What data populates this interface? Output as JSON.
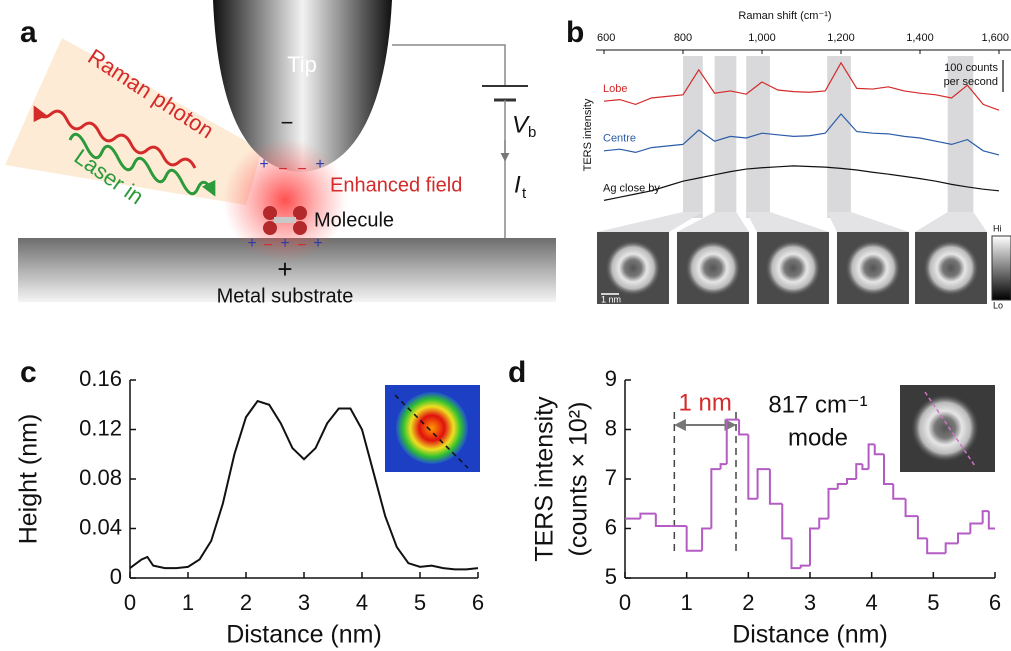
{
  "panel_labels": [
    "a",
    "b",
    "c",
    "d"
  ],
  "schematic": {
    "tip": "Tip",
    "tip_sign": "−",
    "tip_charges": [
      "+",
      "−",
      "−",
      "+"
    ],
    "raman": "Raman photon",
    "laser": "Laser in",
    "enhanced": "Enhanced field",
    "molecule": "Molecule",
    "substrate_charges": [
      "+",
      "−",
      "+",
      "−",
      "+"
    ],
    "substrate_sign": "+",
    "substrate": "Metal substrate",
    "bias": "V",
    "bias_sub": "b",
    "current": "I",
    "current_sub": "t"
  },
  "chart_data": [
    {
      "type": "line",
      "xlabel": "Raman shift (cm⁻¹)",
      "ylabel": "TERS intensity",
      "x": [
        600,
        640,
        680,
        720,
        760,
        800,
        840,
        880,
        920,
        960,
        1000,
        1040,
        1080,
        1120,
        1160,
        1200,
        1240,
        1280,
        1320,
        1360,
        1400,
        1440,
        1480,
        1520,
        1560,
        1600
      ],
      "xlim": [
        600,
        1600
      ],
      "xticks": [
        600,
        800,
        {
          "value": 1000,
          "label": "1,000"
        },
        {
          "value": 1200,
          "label": "1,200"
        },
        {
          "value": 1400,
          "label": "1,400"
        },
        {
          "value": 1600,
          "label": "1,600"
        }
      ],
      "ylim": [
        0,
        500
      ],
      "series": [
        {
          "name": "Lobe",
          "color": "#d42a2a",
          "values": [
            340,
            345,
            330,
            350,
            355,
            360,
            438,
            365,
            372,
            362,
            400,
            375,
            370,
            368,
            372,
            460,
            380,
            378,
            385,
            372,
            365,
            360,
            350,
            390,
            330,
            312
          ]
        },
        {
          "name": "Centre",
          "color": "#2b5ca8",
          "values": [
            185,
            190,
            180,
            195,
            200,
            205,
            250,
            215,
            230,
            225,
            240,
            235,
            230,
            232,
            240,
            300,
            245,
            240,
            238,
            230,
            225,
            215,
            205,
            220,
            185,
            172
          ]
        },
        {
          "name": "Ag close by",
          "color": "#111111",
          "values": [
            30,
            40,
            50,
            60,
            75,
            90,
            100,
            110,
            120,
            128,
            132,
            135,
            138,
            136,
            134,
            130,
            125,
            118,
            112,
            105,
            98,
            90,
            80,
            72,
            65,
            60
          ]
        }
      ],
      "bands": [
        [
          800,
          850
        ],
        [
          880,
          935
        ],
        [
          960,
          1020
        ],
        [
          1165,
          1225
        ],
        [
          1470,
          1535
        ]
      ],
      "scale_bar": {
        "value": 100,
        "label_lines": [
          "100 counts",
          "per second"
        ]
      },
      "image_scale": "1 nm",
      "colorbar": [
        "Hi",
        "Lo"
      ]
    },
    {
      "type": "line",
      "xlabel": "Distance (nm)",
      "ylabel": "Height (nm)",
      "x": [
        0,
        0.2,
        0.3,
        0.4,
        0.6,
        0.8,
        1.0,
        1.2,
        1.4,
        1.6,
        1.8,
        2.0,
        2.2,
        2.4,
        2.6,
        2.8,
        3.0,
        3.2,
        3.4,
        3.6,
        3.8,
        4.0,
        4.2,
        4.4,
        4.6,
        4.8,
        5.0,
        5.2,
        5.4,
        5.6,
        5.8,
        6.0
      ],
      "values": [
        0.008,
        0.015,
        0.017,
        0.01,
        0.008,
        0.008,
        0.009,
        0.015,
        0.03,
        0.06,
        0.1,
        0.13,
        0.143,
        0.14,
        0.125,
        0.105,
        0.096,
        0.105,
        0.125,
        0.137,
        0.137,
        0.12,
        0.085,
        0.05,
        0.025,
        0.012,
        0.009,
        0.01,
        0.008,
        0.007,
        0.007,
        0.008
      ],
      "color": "#111111",
      "xlim": [
        0,
        6
      ],
      "xticks": [
        0,
        1,
        2,
        3,
        4,
        5,
        6
      ],
      "ylim": [
        0,
        0.16
      ],
      "yticks": [
        0,
        0.04,
        0.08,
        0.12,
        0.16
      ]
    },
    {
      "type": "step",
      "xlabel": "Distance (nm)",
      "ylabel": [
        "TERS intensity",
        "(counts × 10²)"
      ],
      "x": [
        0,
        0.25,
        0.5,
        0.75,
        1.0,
        1.25,
        1.4,
        1.55,
        1.65,
        1.85,
        2.0,
        2.15,
        2.35,
        2.55,
        2.7,
        2.85,
        3.0,
        3.15,
        3.3,
        3.45,
        3.6,
        3.75,
        3.85,
        3.95,
        4.05,
        4.2,
        4.35,
        4.55,
        4.75,
        4.9,
        5.2,
        5.4,
        5.6,
        5.8,
        5.9
      ],
      "values": [
        6.2,
        6.3,
        6.05,
        6.05,
        5.55,
        6.0,
        7.2,
        7.3,
        8.2,
        7.9,
        6.6,
        7.2,
        6.5,
        5.8,
        5.2,
        5.25,
        6.0,
        6.2,
        6.8,
        6.9,
        7.0,
        7.3,
        7.2,
        7.7,
        7.5,
        6.9,
        6.6,
        6.25,
        5.8,
        5.5,
        5.7,
        5.9,
        6.1,
        6.35,
        6.0
      ],
      "color": "#b45cc4",
      "xlim": [
        0,
        6
      ],
      "xticks": [
        0,
        1,
        2,
        3,
        4,
        5,
        6
      ],
      "ylim": [
        5,
        9
      ],
      "yticks": [
        5,
        6,
        7,
        8,
        9
      ],
      "markers_x": [
        0.8,
        1.8
      ],
      "annotations": [
        "1 nm",
        "817 cm⁻¹",
        "mode"
      ]
    }
  ]
}
